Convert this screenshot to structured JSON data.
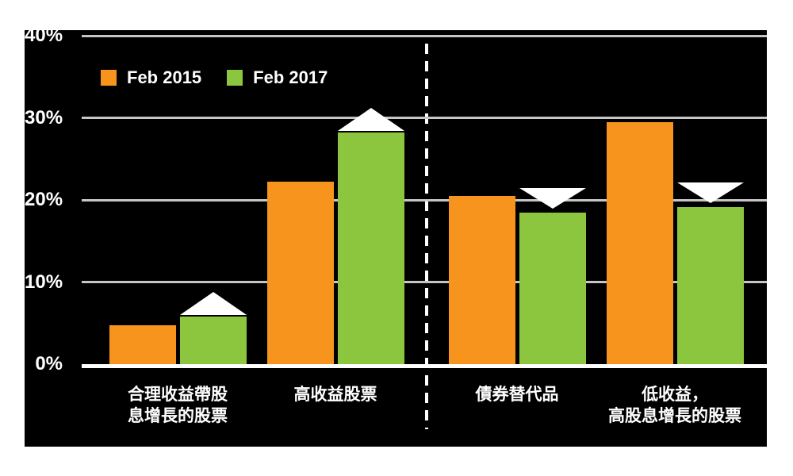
{
  "colors": {
    "page_background": "#ffffff",
    "panel_background": "#000000",
    "gridline": "#c6c6c6",
    "axis_line": "#ffffff",
    "text": "#ffffff",
    "series_2015": "#f7941e",
    "series_2017": "#8cc63f",
    "arrow": "#ffffff"
  },
  "legend": {
    "items": [
      {
        "label": "Feb 2015",
        "color": "#f7941e"
      },
      {
        "label": "Feb 2017",
        "color": "#8cc63f"
      }
    ]
  },
  "chart_data": {
    "type": "bar",
    "title": "",
    "xlabel": "",
    "ylabel": "",
    "categories": [
      "合理收益帶股息增長的股票",
      "高收益股票",
      "債券替代品",
      "低收益，高股息增長的股票"
    ],
    "category_label_lines": [
      [
        "合理收益帶股",
        "息增長的股票"
      ],
      [
        "高收益股票"
      ],
      [
        "債券替代品"
      ],
      [
        "低收益，",
        "高股息增長的股票"
      ]
    ],
    "series": [
      {
        "name": "Feb 2015",
        "color": "#f7941e",
        "values": [
          4.7,
          22.2,
          20.5,
          29.5
        ]
      },
      {
        "name": "Feb 2017",
        "color": "#8cc63f",
        "values": [
          5.8,
          28.2,
          18.5,
          19.1
        ]
      }
    ],
    "change_arrows": [
      "up",
      "up",
      "down",
      "down"
    ],
    "yticks": [
      0,
      10,
      20,
      30,
      40
    ],
    "ytick_labels": [
      "0%",
      "10%",
      "20%",
      "30%",
      "40%"
    ],
    "ylim": [
      0,
      40
    ],
    "grid": "horizontal",
    "legend_position": "top-left-inside",
    "separator_note": "white dashed vertical line between second and third category"
  }
}
